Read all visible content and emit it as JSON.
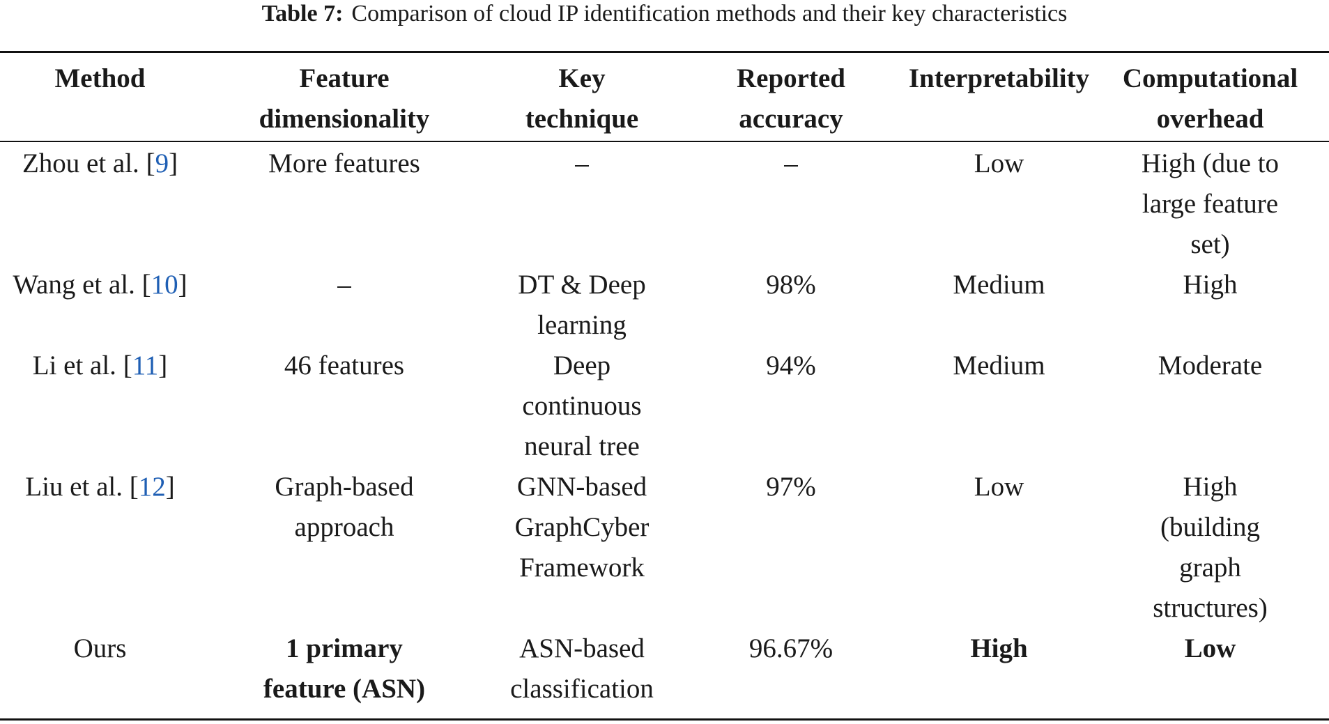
{
  "caption": {
    "label": "Table 7:",
    "text": "Comparison of cloud IP identification methods and their key characteristics"
  },
  "columns": [
    {
      "line1": "Method",
      "line2": ""
    },
    {
      "line1": "Feature",
      "line2": "dimensionality"
    },
    {
      "line1": "Key",
      "line2": "technique"
    },
    {
      "line1": "Reported",
      "line2": "accuracy"
    },
    {
      "line1": "Interpretability",
      "line2": ""
    },
    {
      "line1": "Computational",
      "line2": "overhead"
    }
  ],
  "rows": [
    {
      "method": "Zhou et al.",
      "ref": "9",
      "feature": [
        "More features"
      ],
      "technique": [
        "–"
      ],
      "accuracy": "–",
      "interpretability": "Low",
      "overhead": [
        "High (due to",
        "large feature",
        "set)"
      ]
    },
    {
      "method": "Wang et al.",
      "ref": "10",
      "feature": [
        "–"
      ],
      "technique": [
        "DT & Deep",
        "learning"
      ],
      "accuracy": "98%",
      "interpretability": "Medium",
      "overhead": [
        "High"
      ]
    },
    {
      "method": "Li et al.",
      "ref": "11",
      "feature": [
        "46 features"
      ],
      "technique": [
        "Deep",
        "continuous",
        "neural tree"
      ],
      "accuracy": "94%",
      "interpretability": "Medium",
      "overhead": [
        "Moderate"
      ]
    },
    {
      "method": "Liu et al.",
      "ref": "12",
      "feature": [
        "Graph-based",
        "approach"
      ],
      "technique": [
        "GNN-based",
        "GraphCyber",
        "Framework"
      ],
      "accuracy": "97%",
      "interpretability": "Low",
      "overhead": [
        "High",
        "(building",
        "graph",
        "structures)"
      ]
    },
    {
      "method": "Ours",
      "ref": "",
      "feature": [
        "1 primary",
        "feature (ASN)"
      ],
      "technique": [
        "ASN-based",
        "classification"
      ],
      "accuracy": "96.67%",
      "interpretability": "High",
      "overhead": [
        "Low"
      ]
    }
  ]
}
